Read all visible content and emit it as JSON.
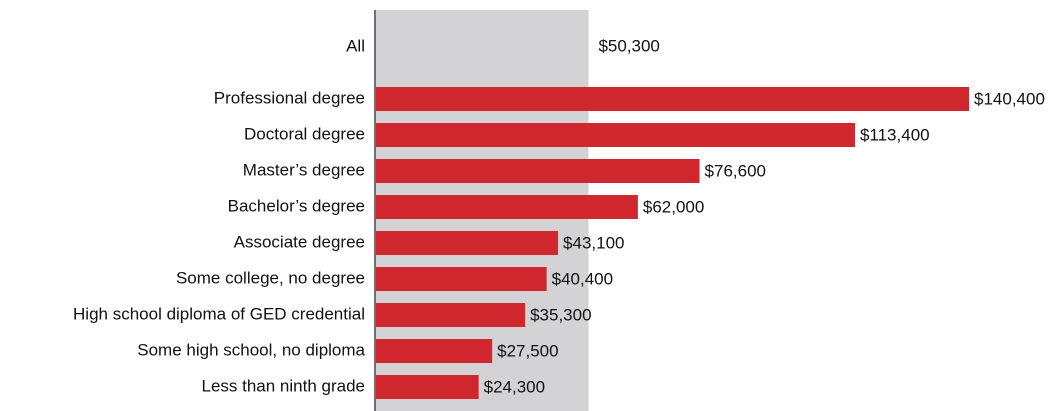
{
  "chart_data": {
    "type": "bar",
    "orientation": "horizontal",
    "reference": {
      "label": "All",
      "value": 50300,
      "value_label": "$50,300",
      "color": "#d3d3d5"
    },
    "categories": [
      "Professional degree",
      "Doctoral degree",
      "Master’s degree",
      "Bachelor’s degree",
      "Associate degree",
      "Some college, no degree",
      "High school diploma of GED credential",
      "Some high school, no diploma",
      "Less than ninth grade"
    ],
    "values": [
      140400,
      113400,
      76600,
      62000,
      43100,
      40400,
      35300,
      27500,
      24300
    ],
    "value_labels": [
      "$140,400",
      "$113,400",
      "$76,600",
      "$62,000",
      "$43,100",
      "$40,400",
      "$35,300",
      "$27,500",
      "$24,300"
    ],
    "color": "#d0262e",
    "xlim": [
      0,
      150000
    ]
  }
}
